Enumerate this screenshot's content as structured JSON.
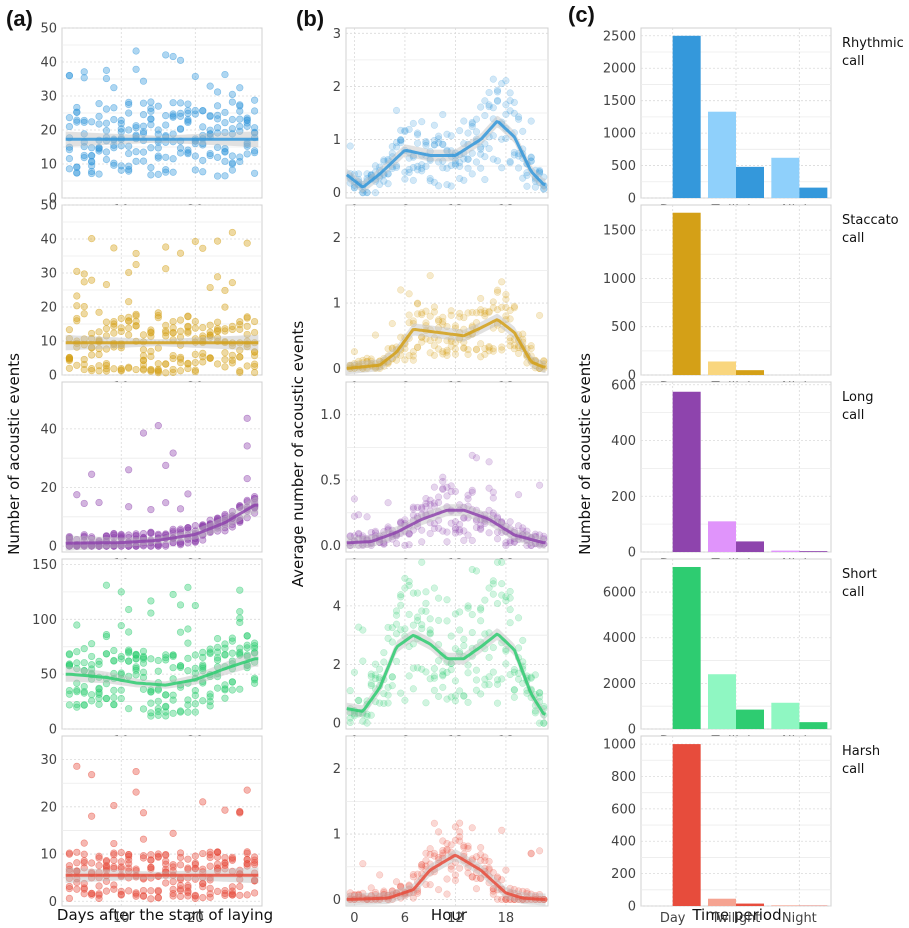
{
  "panel_labels": [
    "(a)",
    "(b)",
    "(c)"
  ],
  "chart_data": [
    {
      "panel": "(a)",
      "type": "scatter",
      "xlabel": "Days after the start of laying",
      "ylabel": "Number of acoustic events",
      "xlim": [
        2,
        29
      ],
      "x_ticks": [
        10,
        20
      ],
      "rows": [
        {
          "call": "Rhythmic call",
          "color": "#3498db",
          "ylim": [
            0,
            50
          ],
          "y_ticks": [
            0,
            10,
            20,
            30,
            40,
            50
          ],
          "trend": [
            [
              2,
              17.3
            ],
            [
              29,
              17.3
            ]
          ],
          "seed": 11,
          "mean": 17,
          "spread": 11,
          "max": 48
        },
        {
          "call": "Staccato call",
          "color": "#d4a017",
          "ylim": [
            0,
            50
          ],
          "y_ticks": [
            0,
            10,
            20,
            30,
            40,
            50
          ],
          "trend": [
            [
              2,
              9.5
            ],
            [
              29,
              9.5
            ]
          ],
          "seed": 23,
          "mean": 9,
          "spread": 9,
          "max": 48
        },
        {
          "call": "Long call",
          "color": "#8e44ad",
          "ylim": [
            -2,
            56
          ],
          "y_ticks": [
            0,
            20,
            40
          ],
          "trend": [
            [
              2,
              1
            ],
            [
              10,
              1.2
            ],
            [
              15,
              2
            ],
            [
              20,
              4
            ],
            [
              24,
              8
            ],
            [
              28,
              14
            ]
          ],
          "seed": 37,
          "mean": 2,
          "spread": 3,
          "max": 54
        },
        {
          "call": "Short call",
          "color": "#2ecc71",
          "ylim": [
            0,
            155
          ],
          "y_ticks": [
            0,
            50,
            100,
            150
          ],
          "trend": [
            [
              3,
              50
            ],
            [
              8,
              47
            ],
            [
              12,
              42
            ],
            [
              16,
              40
            ],
            [
              20,
              45
            ],
            [
              24,
              55
            ],
            [
              28,
              64
            ]
          ],
          "seed": 53,
          "mean": 47,
          "spread": 30,
          "max": 150
        },
        {
          "call": "Harsh call",
          "color": "#e74c3c",
          "ylim": [
            -1,
            35
          ],
          "y_ticks": [
            0,
            10,
            20,
            30
          ],
          "trend": [
            [
              2,
              5.5
            ],
            [
              29,
              5.5
            ]
          ],
          "seed": 71,
          "mean": 5,
          "spread": 5,
          "max": 34
        }
      ]
    },
    {
      "panel": "(b)",
      "type": "scatter",
      "xlabel": "Hour",
      "ylabel": "Average number of acoustic events",
      "xlim": [
        -1,
        23
      ],
      "x_ticks": [
        0,
        6,
        12,
        18
      ],
      "rows": [
        {
          "call": "Rhythmic call",
          "color": "#3498db",
          "ylim": [
            -0.1,
            3.1
          ],
          "y_ticks": [
            0,
            1,
            2,
            3
          ],
          "trend": [
            [
              -1,
              0.35
            ],
            [
              1,
              0.1
            ],
            [
              3,
              0.35
            ],
            [
              6,
              0.8
            ],
            [
              9,
              0.7
            ],
            [
              12,
              0.7
            ],
            [
              15,
              1.0
            ],
            [
              17,
              1.35
            ],
            [
              19,
              1.05
            ],
            [
              21,
              0.4
            ],
            [
              22.5,
              0.15
            ]
          ],
          "seed": 101,
          "scale": 1.0
        },
        {
          "call": "Staccato call",
          "color": "#d4a017",
          "ylim": [
            -0.1,
            2.5
          ],
          "y_ticks": [
            0,
            1,
            2
          ],
          "trend": [
            [
              -1,
              0
            ],
            [
              3,
              0.05
            ],
            [
              5,
              0.25
            ],
            [
              7,
              0.6
            ],
            [
              10,
              0.55
            ],
            [
              13,
              0.5
            ],
            [
              15,
              0.62
            ],
            [
              17,
              0.75
            ],
            [
              19,
              0.55
            ],
            [
              21,
              0.1
            ],
            [
              22.5,
              0.02
            ]
          ],
          "seed": 131,
          "scale": 0.9
        },
        {
          "call": "Long call",
          "color": "#8e44ad",
          "ylim": [
            -0.05,
            1.25
          ],
          "y_ticks": [
            0,
            0.5,
            1.0
          ],
          "tick_labels": [
            "0.0",
            "0.5",
            "1.0"
          ],
          "trend": [
            [
              -1,
              0.02
            ],
            [
              2,
              0.03
            ],
            [
              5,
              0.1
            ],
            [
              8,
              0.2
            ],
            [
              11,
              0.27
            ],
            [
              13,
              0.27
            ],
            [
              16,
              0.2
            ],
            [
              19,
              0.08
            ],
            [
              22.5,
              0.02
            ]
          ],
          "seed": 151,
          "scale": 0.45
        },
        {
          "call": "Short call",
          "color": "#2ecc71",
          "ylim": [
            -0.2,
            5.6
          ],
          "y_ticks": [
            0,
            2,
            4
          ],
          "trend": [
            [
              -1,
              0.5
            ],
            [
              1,
              0.4
            ],
            [
              3,
              1.2
            ],
            [
              5,
              2.6
            ],
            [
              7,
              3.0
            ],
            [
              9,
              2.7
            ],
            [
              11,
              2.2
            ],
            [
              13,
              2.2
            ],
            [
              15,
              2.6
            ],
            [
              17,
              3.05
            ],
            [
              19,
              2.5
            ],
            [
              21,
              1.0
            ],
            [
              22.5,
              0.3
            ]
          ],
          "seed": 181,
          "scale": 3.0
        },
        {
          "call": "Harsh call",
          "color": "#e74c3c",
          "ylim": [
            -0.1,
            2.5
          ],
          "y_ticks": [
            0,
            1,
            2
          ],
          "trend": [
            [
              -1,
              0
            ],
            [
              4,
              0.02
            ],
            [
              7,
              0.15
            ],
            [
              9,
              0.45
            ],
            [
              12,
              0.68
            ],
            [
              15,
              0.45
            ],
            [
              18,
              0.1
            ],
            [
              20,
              0.02
            ],
            [
              22.5,
              0
            ]
          ],
          "seed": 211,
          "scale": 0.9
        }
      ]
    },
    {
      "panel": "(c)",
      "type": "bar",
      "xlabel": "Time period",
      "ylabel": "Number of acoustic events",
      "categories": [
        "Day",
        "Twilight",
        "Night"
      ],
      "rows": [
        {
          "call": "Rhythmic call",
          "strip": [
            "Rhythmic",
            "call"
          ],
          "colors": [
            "#3498db",
            "#8fd0fb"
          ],
          "ylim": [
            0,
            2620
          ],
          "y_ticks": [
            0,
            500,
            1000,
            1500,
            2000,
            2500
          ],
          "bars": [
            {
              "category": "Day",
              "series": "dark",
              "value": 2500
            },
            {
              "category": "Twilight",
              "series": "light",
              "value": 1330
            },
            {
              "category": "Twilight",
              "series": "dark",
              "value": 480
            },
            {
              "category": "Night",
              "series": "light",
              "value": 620
            },
            {
              "category": "Night",
              "series": "dark",
              "value": 160
            }
          ]
        },
        {
          "call": "Staccato call",
          "strip": [
            "Staccato",
            "call"
          ],
          "colors": [
            "#d4a017",
            "#f9d67e"
          ],
          "ylim": [
            0,
            1760
          ],
          "y_ticks": [
            0,
            500,
            1000,
            1500
          ],
          "bars": [
            {
              "category": "Day",
              "series": "dark",
              "value": 1680
            },
            {
              "category": "Twilight",
              "series": "light",
              "value": 140
            },
            {
              "category": "Twilight",
              "series": "dark",
              "value": 50
            },
            {
              "category": "Night",
              "series": "light",
              "value": 0
            },
            {
              "category": "Night",
              "series": "dark",
              "value": 0
            }
          ]
        },
        {
          "call": "Long call",
          "strip": [
            "Long",
            "call"
          ],
          "colors": [
            "#8e44ad",
            "#e094fb"
          ],
          "ylim": [
            0,
            610
          ],
          "y_ticks": [
            0,
            200,
            400,
            600
          ],
          "bars": [
            {
              "category": "Day",
              "series": "dark",
              "value": 575
            },
            {
              "category": "Twilight",
              "series": "light",
              "value": 110
            },
            {
              "category": "Twilight",
              "series": "dark",
              "value": 38
            },
            {
              "category": "Night",
              "series": "light",
              "value": 5
            },
            {
              "category": "Night",
              "series": "dark",
              "value": 3
            }
          ]
        },
        {
          "call": "Short call",
          "strip": [
            "Short",
            "call"
          ],
          "colors": [
            "#2ecc71",
            "#8ff7c2"
          ],
          "ylim": [
            0,
            7450
          ],
          "y_ticks": [
            0,
            2000,
            4000,
            6000
          ],
          "bars": [
            {
              "category": "Day",
              "series": "dark",
              "value": 7100
            },
            {
              "category": "Twilight",
              "series": "light",
              "value": 2400
            },
            {
              "category": "Twilight",
              "series": "dark",
              "value": 850
            },
            {
              "category": "Night",
              "series": "light",
              "value": 1150
            },
            {
              "category": "Night",
              "series": "dark",
              "value": 300
            }
          ]
        },
        {
          "call": "Harsh call",
          "strip": [
            "Harsh",
            "call"
          ],
          "colors": [
            "#e74c3c",
            "#f5a391"
          ],
          "ylim": [
            0,
            1050
          ],
          "y_ticks": [
            0,
            200,
            400,
            600,
            800,
            1000
          ],
          "bars": [
            {
              "category": "Day",
              "series": "dark",
              "value": 1000
            },
            {
              "category": "Twilight",
              "series": "light",
              "value": 45
            },
            {
              "category": "Twilight",
              "series": "dark",
              "value": 15
            },
            {
              "category": "Night",
              "series": "light",
              "value": 4
            },
            {
              "category": "Night",
              "series": "dark",
              "value": 2
            }
          ]
        }
      ]
    }
  ]
}
